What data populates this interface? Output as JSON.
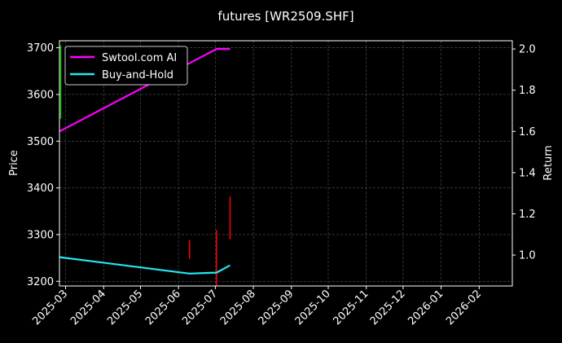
{
  "chart_data": {
    "type": "line",
    "title": "futures [WR2509.SHF]",
    "ylabel": "Price",
    "y2label": "Return",
    "x_range": [
      "2025-02-24",
      "2026-02-28"
    ],
    "ylim": [
      3190,
      3715
    ],
    "y2lim": [
      0.85,
      2.04
    ],
    "x_ticks": [
      "2025-03",
      "2025-04",
      "2025-05",
      "2025-06",
      "2025-07",
      "2025-08",
      "2025-09",
      "2025-10",
      "2025-11",
      "2025-12",
      "2026-01",
      "2026-02"
    ],
    "y_ticks": [
      3200,
      3300,
      3400,
      3500,
      3600,
      3700
    ],
    "y2_ticks": [
      "1.0",
      "1.2",
      "1.4",
      "1.6",
      "1.8",
      "2.0"
    ],
    "grid": true,
    "legend_position": "top-left",
    "series": [
      {
        "name": "Swtool.com AI",
        "axis": "right",
        "color": "#ff00ff",
        "x": [
          "2025-02-24",
          "2025-07-02",
          "2025-07-13"
        ],
        "values": [
          1.6,
          2.0,
          2.0
        ]
      },
      {
        "name": "Buy-and-Hold",
        "axis": "right",
        "color": "#1fe8f5",
        "x": [
          "2025-02-24",
          "2025-06-10",
          "2025-07-02",
          "2025-07-13"
        ],
        "values": [
          0.99,
          0.91,
          0.915,
          0.95
        ]
      }
    ],
    "price_bars": [
      {
        "x": "2025-02-25",
        "low": 3548,
        "high": 3705,
        "color": "#00c000"
      },
      {
        "x": "2025-06-10",
        "low": 3248,
        "high": 3288,
        "color": "#ff0000"
      },
      {
        "x": "2025-07-02",
        "low": 3190,
        "high": 3310,
        "color": "#ff0000"
      },
      {
        "x": "2025-07-13",
        "low": 3290,
        "high": 3382,
        "color": "#ff0000"
      }
    ]
  }
}
